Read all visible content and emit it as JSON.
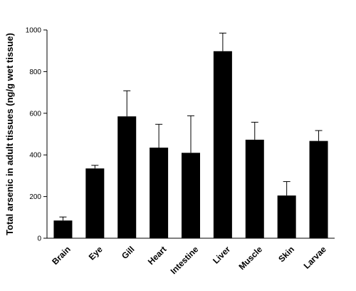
{
  "chart_data": {
    "type": "bar",
    "title": "",
    "xlabel": "",
    "ylabel": "Total arsenic in adult tissues (ng/g wet tissue)",
    "categories": [
      "Brain",
      "Eye",
      "Gill",
      "Heart",
      "Intestine",
      "Liver",
      "Muscle",
      "Skin",
      "Larvae"
    ],
    "values": [
      85,
      335,
      585,
      435,
      410,
      898,
      473,
      205,
      467
    ],
    "error_upper": [
      102,
      350,
      708,
      547,
      588,
      985,
      557,
      272,
      517
    ],
    "ylim": [
      0,
      1000
    ],
    "yticks": [
      0,
      200,
      400,
      600,
      800,
      1000
    ],
    "bar_color": "#000000",
    "grid": false,
    "legend": "none"
  }
}
